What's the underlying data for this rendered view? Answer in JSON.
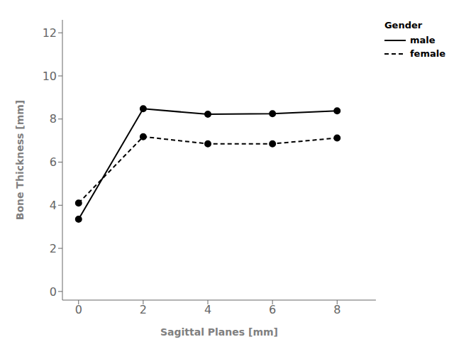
{
  "chart_data": {
    "type": "line",
    "x": [
      0,
      2,
      4,
      6,
      8
    ],
    "series": [
      {
        "name": "male",
        "color": "#000000",
        "values": [
          3.35,
          8.48,
          8.22,
          8.25,
          8.38
        ],
        "line_style": "solid",
        "marker": "o"
      },
      {
        "name": "female",
        "color": "#000000",
        "values": [
          4.1,
          7.18,
          6.85,
          6.85,
          7.12
        ],
        "line_style": "dashed",
        "marker": "o"
      }
    ],
    "xlabel": "Sagittal Planes [mm]",
    "ylabel": "Bone Thickness [mm]",
    "legend_title": "Gender",
    "xlim": [
      -0.5,
      9.2
    ],
    "ylim": [
      -0.4,
      12.6
    ],
    "xticks": [
      0,
      2,
      4,
      6,
      8
    ],
    "yticks": [
      0,
      2,
      4,
      6,
      8,
      10,
      12
    ],
    "grid": false,
    "legend": "right"
  }
}
